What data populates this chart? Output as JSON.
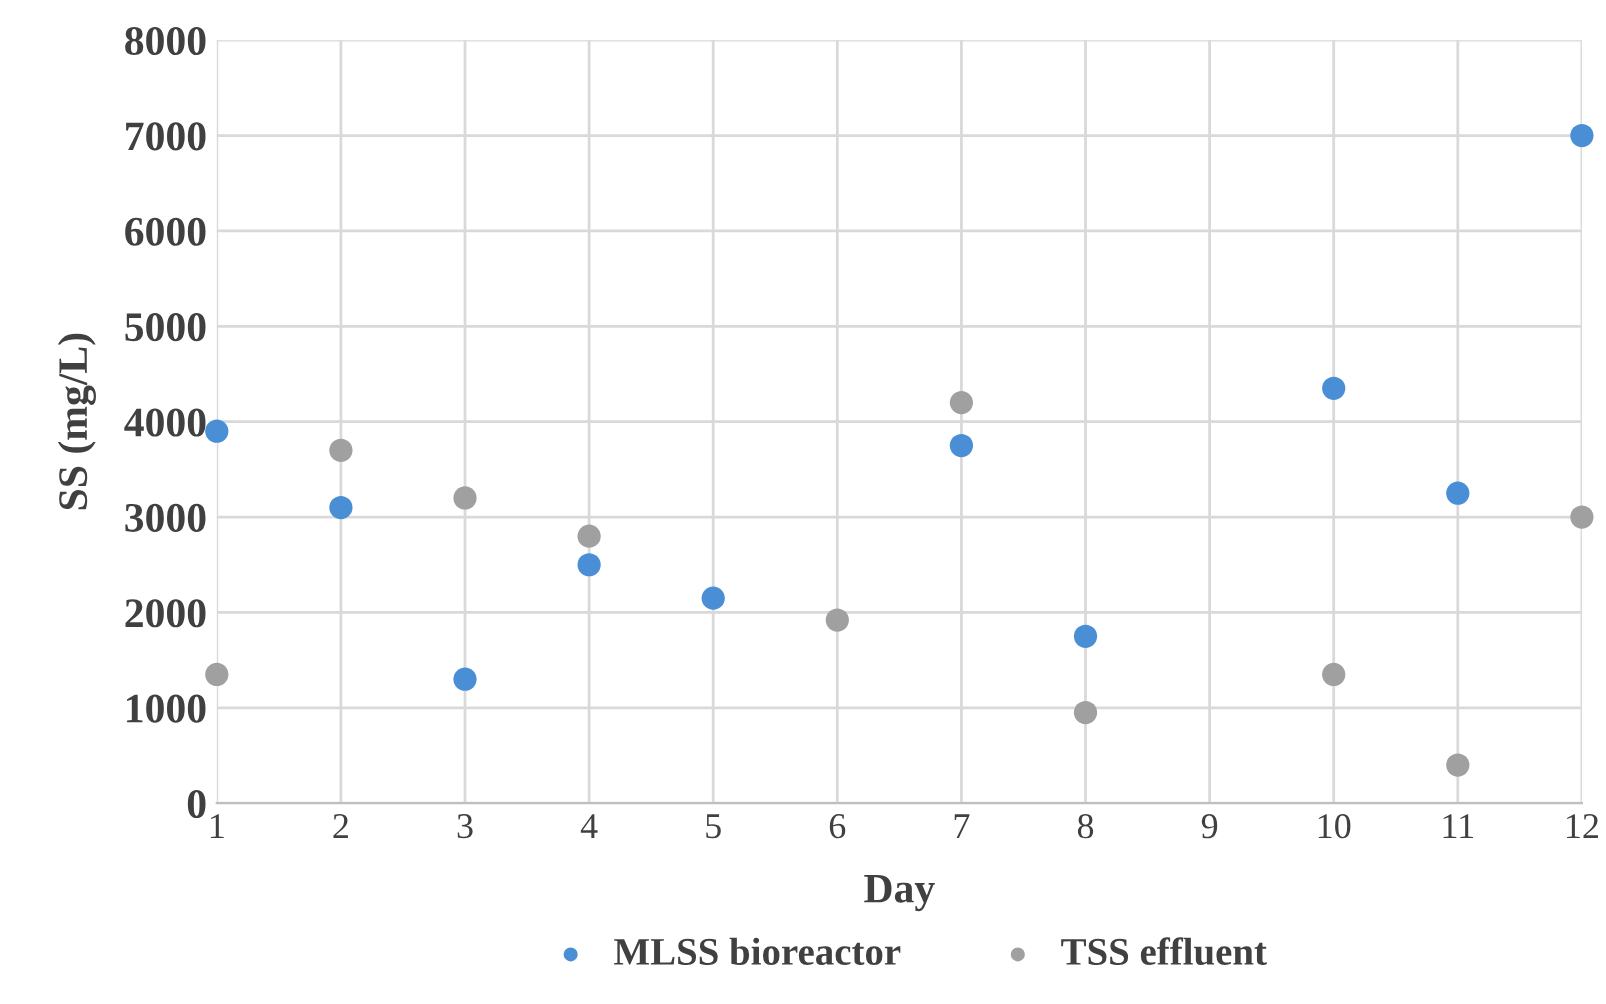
{
  "chart_data": {
    "type": "scatter",
    "xlabel": "Day",
    "ylabel": "SS (mg/L)",
    "categories": [
      "1",
      "2",
      "3",
      "4",
      "5",
      "6",
      "7",
      "8",
      "9",
      "10",
      "11",
      "12"
    ],
    "series": [
      {
        "name": "MLSS bioreactor",
        "color": "#4a8fd6",
        "values": [
          3900,
          3100,
          1300,
          2500,
          2150,
          null,
          3750,
          1750,
          null,
          4350,
          3250,
          7000
        ]
      },
      {
        "name": "TSS effluent",
        "color": "#a0a0a0",
        "values": [
          1350,
          3700,
          3200,
          2800,
          null,
          1920,
          4200,
          950,
          null,
          1350,
          400,
          3000
        ]
      }
    ],
    "ylim": [
      0,
      8000
    ],
    "yticks": [
      0,
      1000,
      2000,
      3000,
      4000,
      5000,
      6000,
      7000,
      8000
    ],
    "grid": true,
    "legend": "bottom",
    "marker": "circle"
  }
}
